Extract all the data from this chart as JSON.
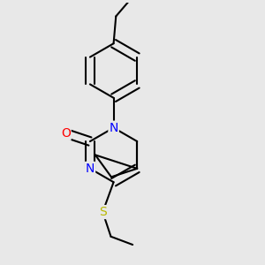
{
  "background_color": "#e8e8e8",
  "bond_color": "#000000",
  "bond_width": 1.5,
  "atom_colors": {
    "N": "#0000ff",
    "O": "#ff0000",
    "S": "#b8b800",
    "C": "#000000"
  },
  "font_size_atom": 10,
  "fig_size": [
    3.0,
    3.0
  ],
  "dpi": 100
}
